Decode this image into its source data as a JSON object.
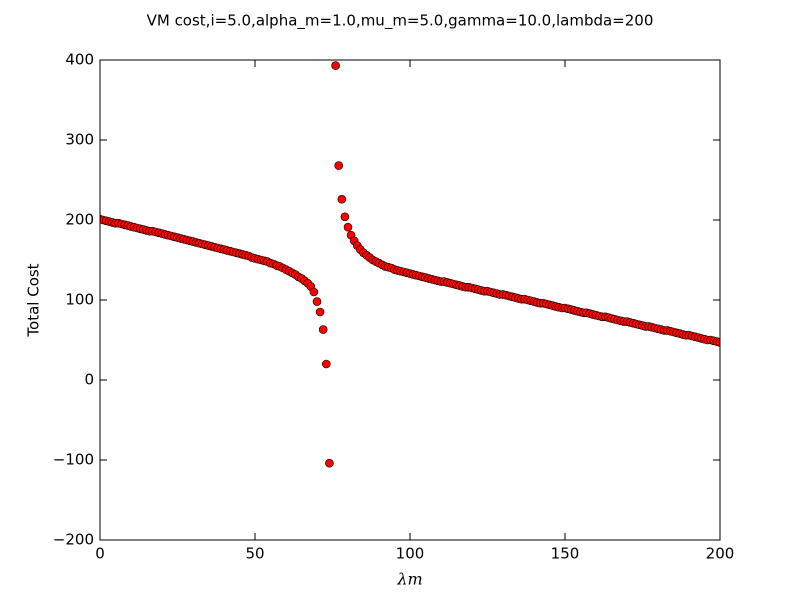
{
  "chart_data": {
    "type": "scatter",
    "title": "VM cost,i=5.0,alpha_m=1.0,mu_m=5.0,gamma=10.0,lambda=200",
    "xlabel": "λm",
    "ylabel": "Total Cost",
    "xlim": [
      0,
      200
    ],
    "ylim": [
      -200,
      400
    ],
    "xticks": [
      0,
      50,
      100,
      150,
      200
    ],
    "yticks": [
      {
        "value": -200,
        "label": "−200"
      },
      {
        "value": -100,
        "label": "−100"
      },
      0,
      100,
      200,
      300,
      400
    ],
    "grid": false,
    "series": [
      {
        "name": "Total Cost",
        "color": "#ff0000",
        "x": [
          0,
          1,
          2,
          3,
          4,
          5,
          6,
          7,
          8,
          9,
          10,
          11,
          12,
          13,
          14,
          15,
          16,
          17,
          18,
          19,
          20,
          21,
          22,
          23,
          24,
          25,
          26,
          27,
          28,
          29,
          30,
          31,
          32,
          33,
          34,
          35,
          36,
          37,
          38,
          39,
          40,
          41,
          42,
          43,
          44,
          45,
          46,
          47,
          48,
          49,
          50,
          51,
          52,
          53,
          54,
          55,
          56,
          57,
          58,
          59,
          60,
          61,
          62,
          63,
          64,
          65,
          66,
          67,
          68,
          69,
          70,
          71,
          72,
          73,
          74,
          76,
          77,
          78,
          79,
          80,
          81,
          82,
          83,
          84,
          85,
          86,
          87,
          88,
          89,
          90,
          91,
          92,
          93,
          94,
          95,
          96,
          97,
          98,
          99,
          100,
          101,
          102,
          103,
          104,
          105,
          106,
          107,
          108,
          109,
          110,
          111,
          112,
          113,
          114,
          115,
          116,
          117,
          118,
          119,
          120,
          121,
          122,
          123,
          124,
          125,
          126,
          127,
          128,
          129,
          130,
          131,
          132,
          133,
          134,
          135,
          136,
          137,
          138,
          139,
          140,
          141,
          142,
          143,
          144,
          145,
          146,
          147,
          148,
          149,
          150,
          151,
          152,
          153,
          154,
          155,
          156,
          157,
          158,
          159,
          160,
          161,
          162,
          163,
          164,
          165,
          166,
          167,
          168,
          169,
          170,
          171,
          172,
          173,
          174,
          175,
          176,
          177,
          178,
          179,
          180,
          181,
          182,
          183,
          184,
          185,
          186,
          187,
          188,
          189,
          190,
          191,
          192,
          193,
          194,
          195,
          196,
          197,
          198,
          199,
          200
        ],
        "values": [
          201,
          200,
          199,
          198,
          197,
          196,
          196,
          195,
          194,
          193,
          192,
          191,
          190,
          189,
          188,
          187,
          186,
          186,
          185,
          184,
          183,
          182,
          181,
          180,
          179,
          178,
          177,
          176,
          175,
          174,
          173,
          172,
          171,
          170,
          169,
          168,
          167,
          166,
          165,
          164,
          163,
          162,
          161,
          160,
          159,
          158,
          157,
          156,
          155,
          153,
          152,
          151,
          150,
          149,
          148,
          146,
          145,
          143,
          142,
          140,
          138,
          136,
          134,
          132,
          129,
          127,
          124,
          121,
          117,
          110,
          98,
          85,
          63,
          20,
          -104,
          393,
          268,
          226,
          204,
          191,
          181,
          174,
          168,
          163,
          159,
          156,
          153,
          150,
          148,
          146,
          144,
          142,
          141,
          140,
          138,
          137,
          136,
          135,
          134,
          133,
          132,
          131,
          130,
          129,
          128,
          127,
          126,
          125,
          124,
          123,
          123,
          122,
          121,
          120,
          119,
          118,
          117,
          116,
          116,
          115,
          114,
          113,
          112,
          111,
          111,
          110,
          109,
          108,
          107,
          107,
          106,
          105,
          104,
          103,
          102,
          101,
          101,
          100,
          99,
          98,
          97,
          96,
          96,
          95,
          94,
          93,
          92,
          91,
          90,
          90,
          89,
          88,
          87,
          86,
          85,
          84,
          84,
          83,
          82,
          81,
          80,
          79,
          79,
          78,
          77,
          76,
          75,
          74,
          73,
          73,
          72,
          71,
          70,
          69,
          68,
          67,
          67,
          66,
          65,
          64,
          63,
          62,
          62,
          61,
          60,
          59,
          58,
          57,
          56,
          56,
          55,
          54,
          53,
          52,
          51,
          50,
          50,
          49,
          48,
          47
        ]
      }
    ]
  }
}
